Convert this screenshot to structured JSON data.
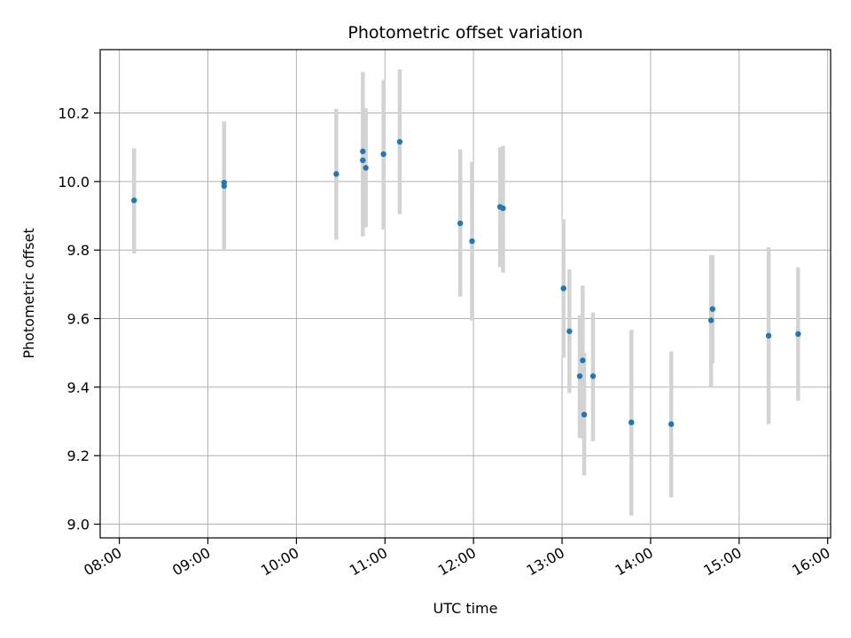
{
  "chart_data": {
    "type": "scatter",
    "title": "Photometric offset variation",
    "xlabel": "UTC time",
    "ylabel": "Photometric offset",
    "x_ticks": [
      "08:00",
      "09:00",
      "10:00",
      "11:00",
      "12:00",
      "13:00",
      "14:00",
      "15:00",
      "16:00"
    ],
    "y_ticks": [
      "9.0",
      "9.2",
      "9.4",
      "9.6",
      "9.8",
      "10.0",
      "10.2"
    ],
    "xlim": [
      "07:47",
      "16:02"
    ],
    "ylim": [
      8.96,
      10.385
    ],
    "grid": true,
    "marker_color": "#1f77b4",
    "errorbar_color": "#d3d3d3",
    "series": [
      {
        "points": [
          {
            "x": "08:10",
            "y": 9.945,
            "ylo": 9.79,
            "yhi": 10.097
          },
          {
            "x": "09:11",
            "y": 9.987,
            "ylo": 9.797,
            "yhi": 10.175
          },
          {
            "x": "09:11",
            "y": 9.997,
            "ylo": 9.797,
            "yhi": 10.175
          },
          {
            "x": "10:27",
            "y": 10.022,
            "ylo": 9.83,
            "yhi": 10.212
          },
          {
            "x": "10:45",
            "y": 10.088,
            "ylo": 9.855,
            "yhi": 10.32
          },
          {
            "x": "10:45",
            "y": 10.062,
            "ylo": 9.84,
            "yhi": 10.29
          },
          {
            "x": "10:47",
            "y": 10.04,
            "ylo": 9.866,
            "yhi": 10.214
          },
          {
            "x": "10:59",
            "y": 10.08,
            "ylo": 9.86,
            "yhi": 10.296
          },
          {
            "x": "11:10",
            "y": 10.116,
            "ylo": 9.905,
            "yhi": 10.327
          },
          {
            "x": "11:51",
            "y": 9.878,
            "ylo": 9.664,
            "yhi": 10.094
          },
          {
            "x": "11:59",
            "y": 9.826,
            "ylo": 9.594,
            "yhi": 10.058
          },
          {
            "x": "12:18",
            "y": 9.926,
            "ylo": 9.75,
            "yhi": 10.1
          },
          {
            "x": "12:20",
            "y": 9.922,
            "ylo": 9.734,
            "yhi": 10.104
          },
          {
            "x": "13:01",
            "y": 9.688,
            "ylo": 9.486,
            "yhi": 9.89
          },
          {
            "x": "13:05",
            "y": 9.563,
            "ylo": 9.383,
            "yhi": 9.744
          },
          {
            "x": "13:12",
            "y": 9.432,
            "ylo": 9.252,
            "yhi": 9.61
          },
          {
            "x": "13:14",
            "y": 9.478,
            "ylo": 9.25,
            "yhi": 9.696
          },
          {
            "x": "13:15",
            "y": 9.32,
            "ylo": 9.142,
            "yhi": 9.5
          },
          {
            "x": "13:21",
            "y": 9.432,
            "ylo": 9.242,
            "yhi": 9.618
          },
          {
            "x": "13:47",
            "y": 9.297,
            "ylo": 9.025,
            "yhi": 9.567
          },
          {
            "x": "14:14",
            "y": 9.292,
            "ylo": 9.078,
            "yhi": 9.504
          },
          {
            "x": "14:41",
            "y": 9.595,
            "ylo": 9.4,
            "yhi": 9.785
          },
          {
            "x": "14:42",
            "y": 9.628,
            "ylo": 9.47,
            "yhi": 9.785
          },
          {
            "x": "15:20",
            "y": 9.55,
            "ylo": 9.292,
            "yhi": 9.808
          },
          {
            "x": "15:40",
            "y": 9.555,
            "ylo": 9.36,
            "yhi": 9.75
          }
        ]
      }
    ]
  }
}
